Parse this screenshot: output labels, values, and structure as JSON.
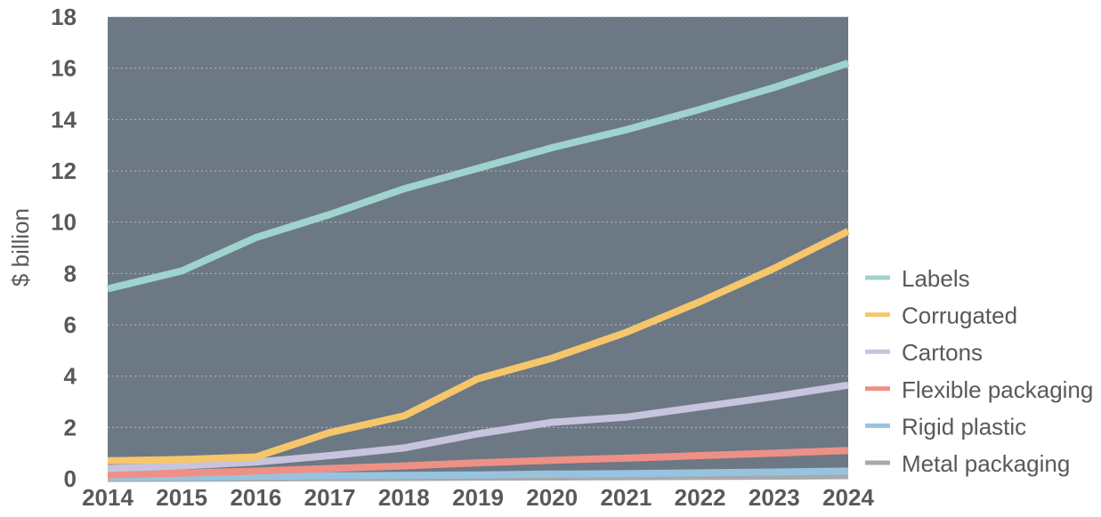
{
  "chart_data": {
    "type": "line",
    "ylabel": "$ billion",
    "xlabel": "",
    "x": [
      "2014",
      "2015",
      "2016",
      "2017",
      "2018",
      "2019",
      "2020",
      "2021",
      "2022",
      "2023",
      "2024"
    ],
    "y_ticks": [
      "0",
      "2",
      "4",
      "6",
      "8",
      "10",
      "12",
      "14",
      "16",
      "18"
    ],
    "ylim": [
      0,
      18
    ],
    "grid": true,
    "legend_position": "right",
    "plot_background": "#6c7884",
    "series": [
      {
        "name": "Labels",
        "color": "#9fd3cd",
        "values": [
          7.4,
          8.1,
          9.4,
          10.3,
          11.3,
          12.1,
          12.9,
          13.6,
          14.4,
          15.25,
          16.2
        ]
      },
      {
        "name": "Corrugated",
        "color": "#f6c66b",
        "values": [
          0.7,
          0.75,
          0.85,
          1.8,
          2.45,
          3.9,
          4.7,
          5.7,
          6.9,
          8.2,
          9.65
        ]
      },
      {
        "name": "Cartons",
        "color": "#c7c4dd",
        "values": [
          0.4,
          0.5,
          0.65,
          0.9,
          1.2,
          1.75,
          2.2,
          2.4,
          2.8,
          3.2,
          3.65
        ]
      },
      {
        "name": "Flexible packaging",
        "color": "#ee9086",
        "values": [
          0.15,
          0.22,
          0.3,
          0.4,
          0.5,
          0.62,
          0.72,
          0.8,
          0.9,
          1.0,
          1.1
        ]
      },
      {
        "name": "Rigid plastic",
        "color": "#98c3df",
        "values": [
          0.05,
          0.07,
          0.09,
          0.11,
          0.13,
          0.15,
          0.18,
          0.2,
          0.23,
          0.26,
          0.3
        ]
      },
      {
        "name": "Metal packaging",
        "color": "#a7a9ac",
        "values": [
          0.01,
          0.02,
          0.03,
          0.04,
          0.05,
          0.06,
          0.07,
          0.08,
          0.09,
          0.1,
          0.12
        ]
      }
    ]
  }
}
